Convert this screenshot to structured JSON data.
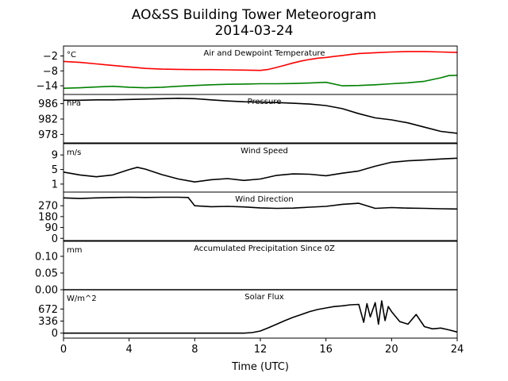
{
  "chart_data": {
    "type": "line",
    "title": "AO&SS Building Tower Meteorogram",
    "subtitle": "2014-03-24",
    "xlabel": "Time (UTC)",
    "xlim": [
      0,
      24
    ],
    "xticks": [
      0,
      4,
      8,
      12,
      16,
      20,
      24
    ],
    "panels": [
      {
        "id": "temperature",
        "title": "Air and Dewpoint Temperature",
        "unit": "°C",
        "ylim": [
          -17.5,
          2
        ],
        "yticks": [
          -2,
          -8,
          -14
        ],
        "ytick_labels": [
          "−2",
          "−8",
          "−14"
        ],
        "series": [
          {
            "color": "#ff0000",
            "x": [
              0,
              1,
              2,
              3,
              4,
              5,
              6,
              7,
              8,
              9,
              10,
              11,
              12,
              12.5,
              13,
              13.5,
              14,
              14.5,
              15,
              15.5,
              16,
              16.5,
              17,
              17.5,
              18,
              19,
              20,
              21,
              22,
              23,
              24
            ],
            "y": [
              -4.2,
              -4.6,
              -5.2,
              -5.8,
              -6.4,
              -7.0,
              -7.3,
              -7.4,
              -7.5,
              -7.5,
              -7.6,
              -7.7,
              -7.8,
              -7.4,
              -6.6,
              -5.7,
              -4.8,
              -4.0,
              -3.4,
              -2.9,
              -2.6,
              -2.2,
              -1.8,
              -1.4,
              -1.0,
              -0.7,
              -0.4,
              -0.2,
              -0.2,
              -0.4,
              -0.6
            ]
          },
          {
            "color": "#008000",
            "x": [
              0,
              1,
              2,
              3,
              4,
              5,
              6,
              7,
              8,
              9,
              10,
              11,
              12,
              13,
              14,
              15,
              16,
              17,
              18,
              19,
              20,
              21,
              22,
              23,
              23.5,
              24
            ],
            "y": [
              -15.0,
              -14.8,
              -14.5,
              -14.2,
              -14.6,
              -14.8,
              -14.6,
              -14.2,
              -13.9,
              -13.6,
              -13.4,
              -13.3,
              -13.2,
              -13.2,
              -13.1,
              -12.9,
              -12.6,
              -14.0,
              -13.9,
              -13.6,
              -13.2,
              -12.8,
              -12.2,
              -10.8,
              -9.9,
              -9.8
            ]
          }
        ]
      },
      {
        "id": "pressure",
        "title": "Pressure",
        "unit": "hPa",
        "ylim": [
          975.8,
          988.4
        ],
        "yticks": [
          986,
          982,
          978
        ],
        "series": [
          {
            "color": "#000000",
            "x": [
              0,
              1,
              2,
              3,
              4,
              5,
              6,
              7,
              8,
              9,
              10,
              11,
              12,
              13,
              14,
              15,
              16,
              17,
              18,
              19,
              20,
              21,
              22,
              23,
              24
            ],
            "y": [
              986.9,
              986.9,
              987.0,
              987.0,
              987.1,
              987.2,
              987.3,
              987.4,
              987.3,
              987.0,
              986.7,
              986.5,
              986.4,
              986.3,
              986.1,
              985.9,
              985.5,
              984.7,
              983.4,
              982.3,
              981.8,
              981.0,
              979.9,
              978.8,
              978.3
            ]
          }
        ]
      },
      {
        "id": "wind_speed",
        "title": "Wind Speed",
        "unit": "m/s",
        "ylim": [
          -1.2,
          12.1
        ],
        "yticks": [
          9,
          5,
          1
        ],
        "series": [
          {
            "color": "#000000",
            "x": [
              0,
              1,
              2,
              3,
              4,
              4.5,
              5,
              6,
              7,
              8,
              9,
              10,
              11,
              12,
              13,
              14,
              15,
              16,
              17,
              18,
              19,
              20,
              21,
              22,
              23,
              24
            ],
            "y": [
              4.3,
              3.5,
              3.0,
              3.5,
              5.0,
              5.6,
              5.1,
              3.6,
              2.4,
              1.6,
              2.2,
              2.5,
              2.0,
              2.4,
              3.4,
              3.8,
              3.7,
              3.3,
              4.0,
              4.6,
              5.9,
              7.0,
              7.4,
              7.6,
              7.9,
              8.1
            ]
          }
        ]
      },
      {
        "id": "wind_direction",
        "title": "Wind Direction",
        "unit": "",
        "ylim": [
          -18,
          383
        ],
        "yticks": [
          270,
          180,
          90,
          0
        ],
        "series": [
          {
            "color": "#000000",
            "x": [
              0,
              1,
              2,
              3,
              4,
              5,
              6,
              7,
              7.6,
              8,
              9,
              10,
              11,
              12,
              13,
              14,
              15,
              16,
              17,
              18,
              19,
              20,
              21,
              22,
              23,
              24
            ],
            "y": [
              335,
              330,
              335,
              338,
              340,
              338,
              340,
              340,
              338,
              270,
              262,
              265,
              260,
              252,
              248,
              250,
              258,
              265,
              282,
              290,
              248,
              255,
              250,
              248,
              245,
              243
            ]
          }
        ]
      },
      {
        "id": "precipitation",
        "title": "Accumulated Precipitation Since 0Z",
        "unit": "mm",
        "ylim": [
          0,
          0.145
        ],
        "yticks": [
          0.1,
          0.05,
          0.0
        ],
        "ytick_labels": [
          "0.10",
          "0.05",
          "0.00"
        ],
        "series": [
          {
            "color": "#000000",
            "x": [
              0,
              24
            ],
            "y": [
              0,
              0
            ]
          }
        ]
      },
      {
        "id": "solar_flux",
        "title": "Solar Flux",
        "unit": "W/m^2",
        "ylim": [
          -140,
          1210
        ],
        "yticks": [
          672,
          336,
          0
        ],
        "series": [
          {
            "color": "#000000",
            "x": [
              0,
              11,
              11.5,
              12,
              12.5,
              13,
              13.5,
              14,
              14.5,
              15,
              15.5,
              16,
              16.5,
              17,
              17.5,
              18,
              18.3,
              18.5,
              18.7,
              19.0,
              19.2,
              19.4,
              19.6,
              19.8,
              20,
              20.5,
              21,
              21.5,
              22,
              22.5,
              23,
              23.5,
              24
            ],
            "y": [
              0,
              0,
              15,
              60,
              150,
              250,
              350,
              440,
              520,
              600,
              660,
              700,
              740,
              760,
              790,
              800,
              300,
              820,
              450,
              850,
              250,
              900,
              350,
              740,
              600,
              320,
              250,
              520,
              180,
              120,
              140,
              90,
              30
            ]
          }
        ]
      }
    ]
  }
}
